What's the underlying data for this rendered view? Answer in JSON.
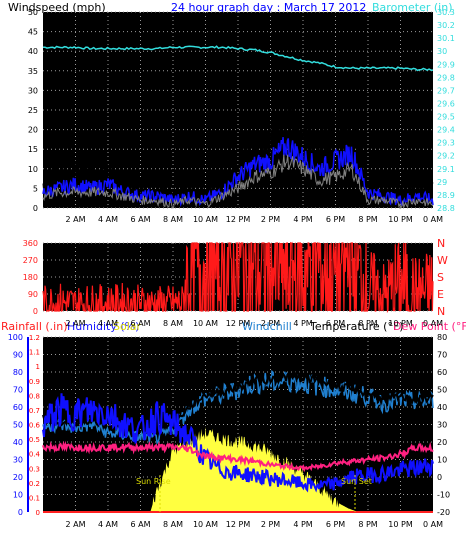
{
  "header": {
    "left_label": "Windspeed (mph)",
    "title": "24 hour graph day : March 17 2012",
    "right_label": "Barometer (in)"
  },
  "colors": {
    "background": "#000000",
    "grid": "#9a9a9a",
    "windspeed": "#1010ff",
    "gust": "#000000",
    "wind_avg": "#808080",
    "barometer": "#33dddd",
    "direction": "#ff1a1a",
    "rainfall": "#ff2020",
    "humidity": "#1010ff",
    "solar": "#ffff40",
    "windchill": "#2080d0",
    "temperature": "#000000",
    "dewpoint": "#ff2080",
    "tick_text_left": "#ff0000",
    "tick_text_axis": "#0000ff"
  },
  "bottom": {
    "rain_label": "Rainfall (.in)",
    "humidity_label": "Humidity (%)",
    "solar_label": "Solar",
    "windchill_label": "Windchill",
    "temp_label": "Temperature (°F)",
    "dew_label": "Dew Point (°F)",
    "sunrise_label": "Sun Rise",
    "sunset_label": "Sun Set"
  },
  "x_ticks": [
    "2 AM",
    "4 AM",
    "6 AM",
    "8 AM",
    "10 AM",
    "12 PM",
    "2 PM",
    "4 PM",
    "6 PM",
    "8 PM",
    "10 PM",
    "0 AM"
  ],
  "chart_data": [
    {
      "type": "line",
      "title": "24 hour graph day : March 17 2012",
      "ylabel": "Windspeed (mph)",
      "y2label": "Barometer (in)",
      "ylim": [
        0,
        50
      ],
      "y2lim": [
        28.8,
        30.3
      ],
      "yticks": [
        0,
        5,
        10,
        15,
        20,
        25,
        30,
        35,
        40,
        45,
        50
      ],
      "y2ticks": [
        "28.8",
        "28.9",
        "29",
        "29.1",
        "29.2",
        "29.3",
        "29.4",
        "29.5",
        "29.6",
        "29.7",
        "29.8",
        "29.9",
        "30",
        "30.1",
        "30.2",
        "30.3"
      ],
      "x_hours": [
        0,
        1,
        2,
        3,
        4,
        5,
        6,
        7,
        8,
        9,
        10,
        11,
        12,
        13,
        14,
        15,
        16,
        17,
        18,
        19,
        20,
        21,
        22,
        23,
        24
      ],
      "series": [
        {
          "name": "Barometer",
          "axis": "right",
          "values": [
            30.03,
            30.03,
            30.03,
            30.02,
            30.02,
            30.02,
            30.02,
            30.02,
            30.03,
            30.03,
            30.03,
            30.03,
            30.02,
            30.01,
            29.99,
            29.96,
            29.93,
            29.91,
            29.88,
            29.87,
            29.87,
            29.87,
            29.87,
            29.86,
            29.86
          ]
        },
        {
          "values": [
            6,
            8,
            9,
            7,
            8,
            6,
            4,
            5,
            3,
            4,
            3,
            6,
            12,
            16,
            17,
            23,
            18,
            14,
            19,
            23,
            6,
            4,
            4,
            5,
            4
          ]
        },
        {
          "values": [
            4,
            5,
            6,
            5,
            6,
            4,
            3,
            3,
            2,
            3,
            2,
            4,
            8,
            11,
            12,
            16,
            13,
            10,
            12,
            14,
            4,
            3,
            2,
            3,
            2
          ]
        },
        {
          "values": [
            3,
            4,
            4,
            4,
            4,
            3,
            2,
            2,
            1,
            2,
            1,
            3,
            5,
            8,
            9,
            12,
            10,
            7,
            8,
            10,
            2,
            2,
            1,
            2,
            1
          ]
        }
      ]
    },
    {
      "type": "scatter",
      "ylim": [
        0,
        360
      ],
      "yticks": [
        0,
        90,
        180,
        270,
        360
      ],
      "y2ticks": [
        "N",
        "E",
        "S",
        "W",
        "N"
      ],
      "x_hours": [
        0,
        1,
        2,
        3,
        4,
        5,
        6,
        7,
        8,
        8.6,
        9,
        10,
        11,
        12,
        13,
        14,
        15,
        16,
        17,
        18,
        19,
        20,
        21,
        22,
        23,
        24
      ],
      "values": [
        40,
        45,
        38,
        42,
        40,
        44,
        40,
        38,
        40,
        40,
        250,
        230,
        225,
        230,
        215,
        235,
        220,
        230,
        240,
        225,
        240,
        110,
        80,
        140,
        90,
        110
      ]
    },
    {
      "type": "line",
      "ylabel": "Temperature (°F)",
      "ylim": [
        -20,
        80
      ],
      "yticks": [
        -20,
        -10,
        0,
        10,
        20,
        30,
        40,
        50,
        60,
        70,
        80
      ],
      "rain_ticks": [
        0,
        0.1,
        0.2,
        0.3,
        0.4,
        0.5,
        0.6,
        0.7,
        0.8,
        0.9,
        1,
        1.1,
        1.2
      ],
      "humidity_ticks": [
        0,
        10,
        20,
        30,
        40,
        50,
        60,
        70,
        80,
        90,
        100
      ],
      "x_hours": [
        0,
        1,
        2,
        3,
        4,
        5,
        6,
        7,
        8,
        9,
        10,
        11,
        12,
        13,
        14,
        15,
        16,
        17,
        18,
        19,
        20,
        21,
        22,
        23,
        24
      ],
      "series": [
        {
          "name": "Temperature",
          "values": [
            34,
            31,
            31,
            32,
            31,
            30,
            29,
            30,
            30,
            40,
            47,
            49,
            51,
            55,
            56,
            57,
            57,
            55,
            52,
            50,
            48,
            44,
            46,
            44,
            46
          ]
        },
        {
          "name": "Windchill",
          "values": [
            29,
            30,
            28,
            30,
            25,
            24,
            23,
            22,
            27,
            39,
            45,
            47,
            50,
            54,
            54,
            55,
            54,
            52,
            50,
            48,
            46,
            42,
            44,
            43,
            44
          ]
        },
        {
          "name": "Humidity",
          "axis": "humidity",
          "values": [
            50,
            58,
            56,
            58,
            57,
            50,
            46,
            55,
            50,
            43,
            30,
            24,
            22,
            21,
            19,
            18,
            16,
            15,
            16,
            20,
            21,
            22,
            24,
            25,
            27
          ]
        },
        {
          "name": "Dew Point",
          "values": [
            17,
            17,
            17,
            17,
            17,
            17,
            17,
            17,
            17,
            16,
            12,
            11,
            10,
            9,
            7,
            6,
            5,
            6,
            8,
            9,
            10,
            11,
            13,
            17,
            16
          ]
        },
        {
          "name": "Solar",
          "x_hours": [
            6.6,
            7,
            8,
            9,
            10,
            11,
            12,
            13,
            14,
            15,
            16,
            17,
            18,
            18.8,
            19.4
          ],
          "values": [
            0,
            12,
            35,
            40,
            45,
            42,
            40,
            38,
            34,
            28,
            22,
            14,
            6,
            2,
            0
          ]
        },
        {
          "name": "Rainfall",
          "axis": "rain",
          "values": [
            0,
            0,
            0,
            0,
            0,
            0,
            0,
            0,
            0,
            0,
            0,
            0,
            0,
            0,
            0,
            0,
            0,
            0,
            0,
            0,
            0,
            0,
            0,
            0,
            0
          ]
        }
      ],
      "sunrise_hour": 7.2,
      "sunset_hour": 19.2
    }
  ]
}
